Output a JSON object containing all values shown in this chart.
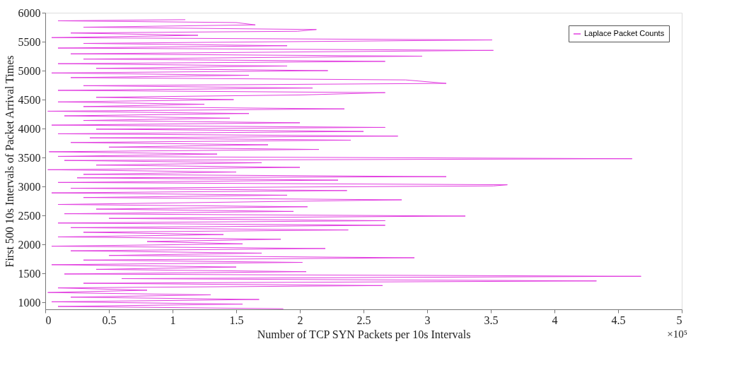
{
  "chart_data": {
    "type": "line",
    "orientation": "horizontal",
    "xlabel": "Number of TCP SYN Packets per 10s Intervals",
    "ylabel": "First 500 10s Intervals of Packet Arrival Times",
    "xlim": [
      0,
      5
    ],
    "xticks": [
      0,
      0.5,
      1,
      1.5,
      2,
      2.5,
      3,
      3.5,
      4,
      4.5,
      5
    ],
    "ylim": [
      880,
      6000
    ],
    "yticks": [
      1000,
      1500,
      2000,
      2500,
      3000,
      3500,
      4000,
      4500,
      5000,
      5500,
      6000
    ],
    "annotations": [
      "×10⁵"
    ],
    "legend": "top right",
    "grid": false,
    "series": [
      {
        "name": "Laplace Packet Counts",
        "color": "#e23fe0",
        "x": [
          890,
          930,
          970,
          1010,
          1050,
          1090,
          1130,
          1170,
          1210,
          1250,
          1290,
          1330,
          1370,
          1410,
          1450,
          1490,
          1530,
          1570,
          1610,
          1650,
          1690,
          1730,
          1770,
          1810,
          1850,
          1890,
          1930,
          1970,
          2010,
          2050,
          2090,
          2130,
          2170,
          2210,
          2250,
          2290,
          2330,
          2370,
          2410,
          2450,
          2490,
          2530,
          2570,
          2610,
          2650,
          2690,
          2730,
          2770,
          2810,
          2850,
          2890,
          2930,
          2970,
          3010,
          3030,
          3070,
          3110,
          3150,
          3170,
          3210,
          3250,
          3290,
          3330,
          3370,
          3410,
          3450,
          3480,
          3520,
          3560,
          3600,
          3640,
          3680,
          3720,
          3760,
          3800,
          3840,
          3870,
          3910,
          3950,
          3990,
          4020,
          4060,
          4100,
          4140,
          4180,
          4220,
          4260,
          4300,
          4340,
          4380,
          4420,
          4460,
          4500,
          4540,
          4580,
          4620,
          4660,
          4700,
          4740,
          4780,
          4840,
          4880,
          4920,
          4960,
          5000,
          5040,
          5080,
          5120,
          5160,
          5200,
          5250,
          5290,
          5350,
          5390,
          5430,
          5470,
          5530,
          5570,
          5610,
          5650,
          5680,
          5710,
          5750,
          5790,
          5830,
          5860,
          5880
        ],
        "values": [
          1.87,
          0.1,
          1.55,
          0.05,
          1.68,
          0.2,
          1.3,
          0.02,
          0.8,
          0.1,
          2.65,
          0.3,
          4.33,
          0.6,
          4.68,
          0.15,
          2.05,
          0.4,
          1.5,
          0.05,
          2.02,
          0.3,
          2.9,
          0.5,
          1.7,
          0.2,
          2.2,
          0.05,
          1.55,
          0.8,
          1.85,
          0.1,
          1.4,
          0.3,
          2.38,
          0.2,
          2.67,
          0.1,
          2.67,
          0.5,
          3.3,
          0.15,
          1.95,
          0.4,
          2.06,
          0.1,
          1.45,
          2.8,
          0.3,
          1.9,
          0.05,
          2.37,
          0.2,
          3.52,
          3.63,
          0.1,
          2.3,
          0.25,
          3.15,
          0.3,
          1.5,
          0.02,
          2.0,
          0.4,
          1.7,
          0.15,
          4.61,
          0.1,
          1.35,
          0.03,
          2.15,
          0.5,
          1.75,
          0.2,
          2.4,
          0.35,
          2.77,
          0.1,
          2.5,
          0.4,
          2.67,
          0.05,
          2.0,
          0.3,
          1.45,
          0.15,
          1.6,
          0.02,
          2.35,
          0.3,
          1.25,
          0.1,
          1.48,
          0.4,
          2.0,
          2.67,
          0.1,
          2.1,
          0.3,
          3.15,
          2.83,
          0.2,
          1.6,
          0.05,
          2.22,
          0.4,
          1.9,
          0.1,
          2.67,
          0.3,
          2.96,
          0.2,
          3.52,
          0.1,
          1.9,
          0.3,
          3.51,
          0.05,
          1.2,
          0.2,
          1.98,
          2.13,
          0.3,
          1.65,
          1.5,
          0.1,
          1.1
        ]
      }
    ]
  }
}
